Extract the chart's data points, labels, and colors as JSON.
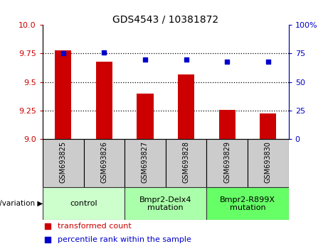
{
  "title": "GDS4543 / 10381872",
  "samples": [
    "GSM693825",
    "GSM693826",
    "GSM693827",
    "GSM693828",
    "GSM693829",
    "GSM693830"
  ],
  "bar_values": [
    9.78,
    9.68,
    9.4,
    9.565,
    9.255,
    9.225
  ],
  "percentile_values": [
    75,
    76,
    70,
    70,
    68,
    68
  ],
  "bar_color": "#cc0000",
  "dot_color": "#0000cc",
  "ylim_left": [
    9.0,
    10.0
  ],
  "ylim_right": [
    0,
    100
  ],
  "yticks_left": [
    9.0,
    9.25,
    9.5,
    9.75,
    10.0
  ],
  "yticks_right": [
    0,
    25,
    50,
    75,
    100
  ],
  "grid_lines": [
    9.25,
    9.5,
    9.75
  ],
  "groups": [
    {
      "label": "control",
      "span": [
        0,
        1
      ],
      "color": "#ccffcc"
    },
    {
      "label": "Bmpr2-Delx4\nmutation",
      "span": [
        2,
        3
      ],
      "color": "#aaffaa"
    },
    {
      "label": "Bmpr2-R899X\nmutation",
      "span": [
        4,
        5
      ],
      "color": "#66ff66"
    }
  ],
  "genotype_label": "genotype/variation ▶",
  "legend_bar_label": "transformed count",
  "legend_dot_label": "percentile rank within the sample",
  "sample_bg_color": "#cccccc",
  "group_border_color": "#333333",
  "bar_width": 0.4
}
